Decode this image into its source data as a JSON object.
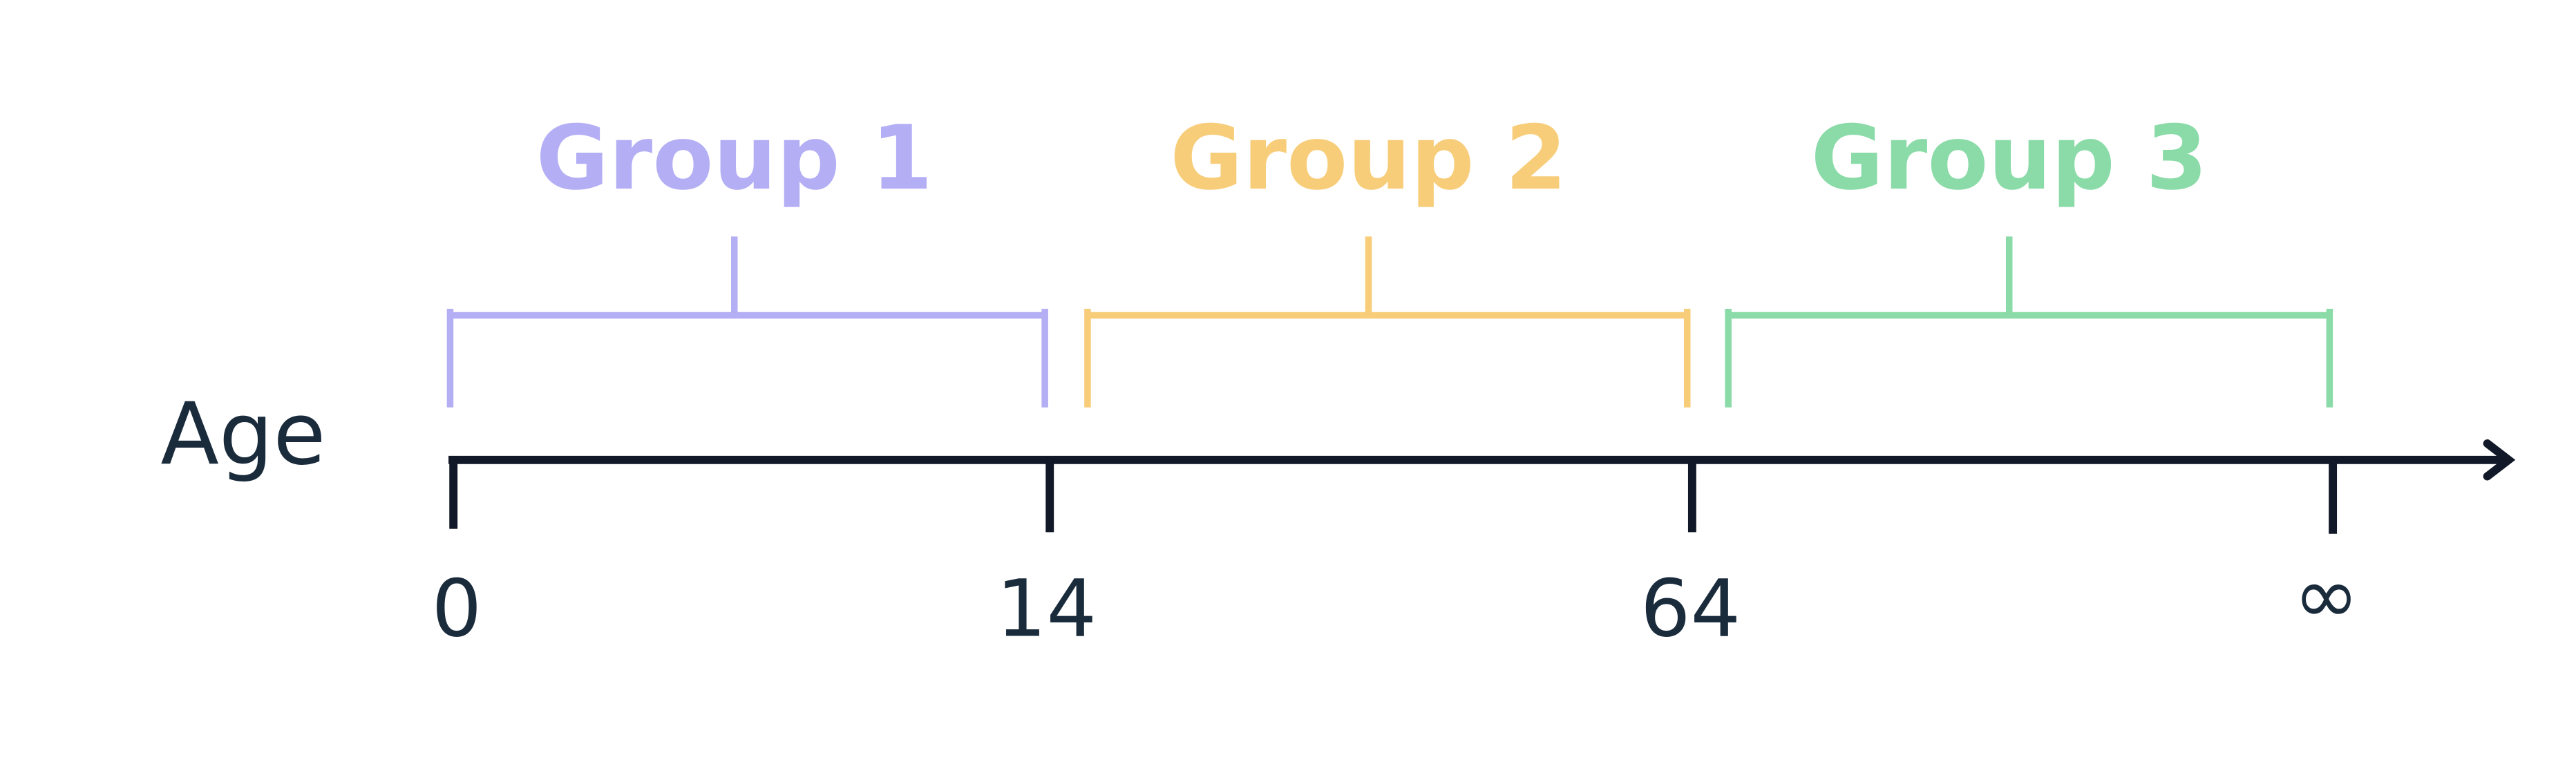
{
  "axis_label": "Age",
  "ticks": [
    "0",
    "14",
    "64",
    "∞"
  ],
  "groups": [
    {
      "label": "Group 1"
    },
    {
      "label": "Group 2"
    },
    {
      "label": "Group 3"
    }
  ]
}
